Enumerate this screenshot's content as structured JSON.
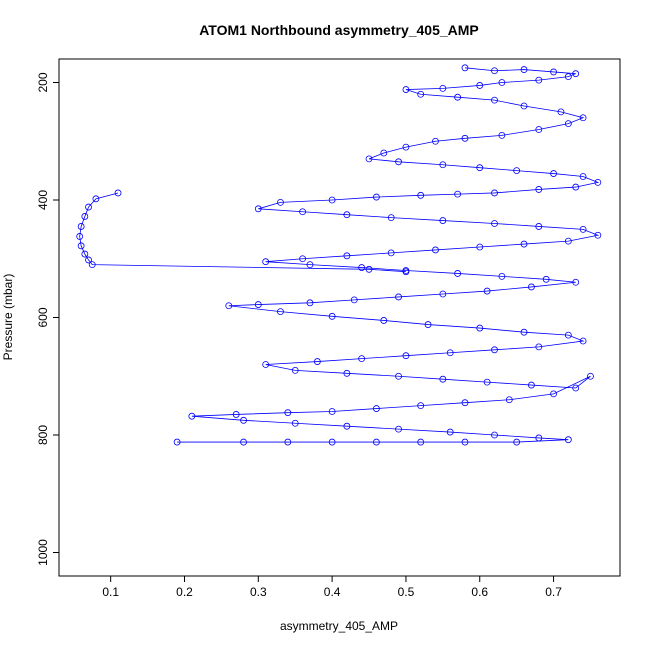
{
  "chart_data": {
    "type": "line",
    "title": "ATOM1 Northbound asymmetry_405_AMP",
    "xlabel": "asymmetry_405_AMP",
    "ylabel": "Pressure (mbar)",
    "xlim": [
      0.03,
      0.79
    ],
    "ylim": [
      1040,
      160
    ],
    "y_reversed": true,
    "x_ticks": [
      0.1,
      0.2,
      0.3,
      0.4,
      0.5,
      0.6,
      0.7
    ],
    "x_tick_labels": [
      "0.1",
      "0.2",
      "0.3",
      "0.4",
      "0.5",
      "0.6",
      "0.7"
    ],
    "y_ticks": [
      200,
      400,
      600,
      800,
      1000
    ],
    "y_tick_labels": [
      "200",
      "400",
      "600",
      "800",
      "1000"
    ],
    "grid": false,
    "colors": {
      "series": "#0000ff",
      "frame": "#000000"
    },
    "series": [
      {
        "marker": "open-circle",
        "line": true,
        "points": [
          [
            0.58,
            175
          ],
          [
            0.62,
            180
          ],
          [
            0.66,
            178
          ],
          [
            0.7,
            182
          ],
          [
            0.73,
            185
          ],
          [
            0.72,
            190
          ],
          [
            0.68,
            196
          ],
          [
            0.63,
            200
          ],
          [
            0.6,
            205
          ],
          [
            0.55,
            210
          ],
          [
            0.5,
            212
          ],
          [
            0.52,
            220
          ],
          [
            0.57,
            225
          ],
          [
            0.62,
            230
          ],
          [
            0.66,
            240
          ],
          [
            0.71,
            250
          ],
          [
            0.74,
            260
          ],
          [
            0.72,
            270
          ],
          [
            0.68,
            280
          ],
          [
            0.63,
            290
          ],
          [
            0.58,
            295
          ],
          [
            0.54,
            300
          ],
          [
            0.5,
            310
          ],
          [
            0.47,
            320
          ],
          [
            0.45,
            330
          ],
          [
            0.49,
            335
          ],
          [
            0.55,
            340
          ],
          [
            0.6,
            345
          ],
          [
            0.65,
            350
          ],
          [
            0.7,
            355
          ],
          [
            0.74,
            360
          ],
          [
            0.76,
            370
          ],
          [
            0.73,
            378
          ],
          [
            0.68,
            382
          ],
          [
            0.62,
            388
          ],
          [
            0.57,
            390
          ],
          [
            0.52,
            392
          ],
          [
            0.46,
            395
          ],
          [
            0.4,
            400
          ],
          [
            0.33,
            404
          ],
          [
            0.3,
            415
          ],
          [
            0.36,
            420
          ],
          [
            0.42,
            425
          ],
          [
            0.48,
            430
          ],
          [
            0.55,
            435
          ],
          [
            0.62,
            440
          ],
          [
            0.68,
            445
          ],
          [
            0.74,
            450
          ],
          [
            0.76,
            460
          ],
          [
            0.72,
            470
          ],
          [
            0.66,
            475
          ],
          [
            0.6,
            480
          ],
          [
            0.54,
            485
          ],
          [
            0.48,
            490
          ],
          [
            0.42,
            495
          ],
          [
            0.36,
            500
          ],
          [
            0.31,
            505
          ],
          [
            0.37,
            510
          ],
          [
            0.44,
            515
          ],
          [
            0.5,
            520
          ],
          [
            0.57,
            525
          ],
          [
            0.63,
            530
          ],
          [
            0.69,
            535
          ],
          [
            0.73,
            540
          ],
          [
            0.67,
            548
          ],
          [
            0.61,
            555
          ],
          [
            0.55,
            560
          ],
          [
            0.49,
            565
          ],
          [
            0.43,
            570
          ],
          [
            0.37,
            575
          ],
          [
            0.3,
            578
          ],
          [
            0.26,
            580
          ],
          [
            0.33,
            590
          ],
          [
            0.4,
            598
          ],
          [
            0.47,
            605
          ],
          [
            0.53,
            612
          ],
          [
            0.6,
            618
          ],
          [
            0.66,
            625
          ],
          [
            0.72,
            630
          ],
          [
            0.74,
            640
          ],
          [
            0.68,
            650
          ],
          [
            0.62,
            655
          ],
          [
            0.56,
            660
          ],
          [
            0.5,
            665
          ],
          [
            0.44,
            670
          ],
          [
            0.38,
            675
          ],
          [
            0.31,
            680
          ],
          [
            0.35,
            690
          ],
          [
            0.42,
            695
          ],
          [
            0.49,
            700
          ],
          [
            0.55,
            705
          ],
          [
            0.61,
            710
          ],
          [
            0.67,
            715
          ],
          [
            0.73,
            720
          ],
          [
            0.75,
            700
          ],
          [
            0.7,
            730
          ],
          [
            0.64,
            740
          ],
          [
            0.58,
            745
          ],
          [
            0.52,
            750
          ],
          [
            0.46,
            755
          ],
          [
            0.4,
            760
          ],
          [
            0.34,
            762
          ],
          [
            0.27,
            765
          ],
          [
            0.21,
            768
          ],
          [
            0.28,
            775
          ],
          [
            0.35,
            780
          ],
          [
            0.42,
            785
          ],
          [
            0.49,
            790
          ],
          [
            0.56,
            795
          ],
          [
            0.62,
            800
          ],
          [
            0.68,
            805
          ],
          [
            0.72,
            808
          ],
          [
            0.65,
            812
          ],
          [
            0.58,
            812
          ],
          [
            0.52,
            812
          ],
          [
            0.46,
            812
          ],
          [
            0.4,
            812
          ],
          [
            0.34,
            812
          ],
          [
            0.28,
            812
          ],
          [
            0.19,
            812
          ]
        ]
      },
      {
        "marker": "open-circle",
        "line": true,
        "points": [
          [
            0.11,
            388
          ],
          [
            0.08,
            398
          ],
          [
            0.07,
            412
          ],
          [
            0.065,
            428
          ],
          [
            0.06,
            445
          ],
          [
            0.058,
            462
          ],
          [
            0.06,
            478
          ],
          [
            0.065,
            492
          ],
          [
            0.07,
            502
          ],
          [
            0.075,
            510
          ],
          [
            0.45,
            518
          ],
          [
            0.5,
            522
          ]
        ]
      }
    ]
  }
}
